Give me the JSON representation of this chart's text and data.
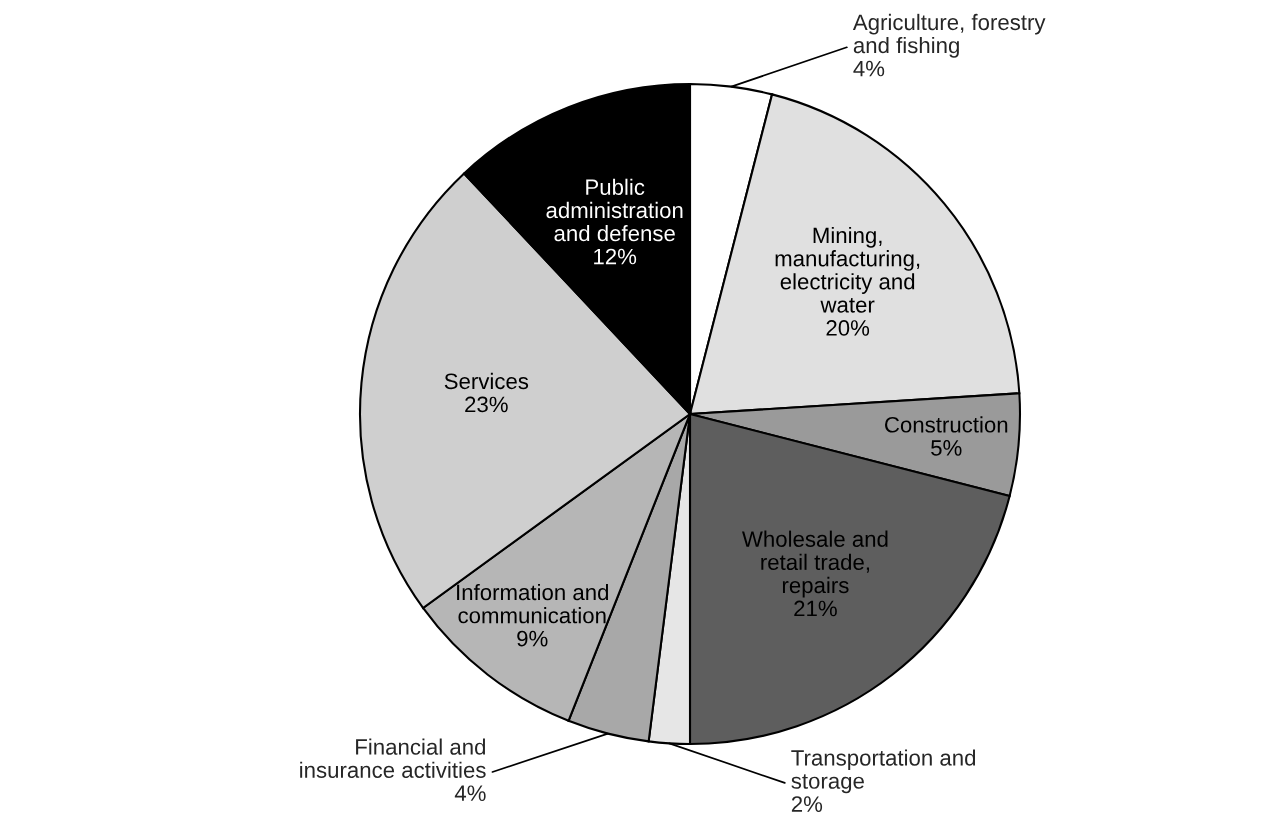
{
  "chart_data": {
    "type": "pie",
    "categories": [
      "Agriculture, forestry\nand fishing",
      "Mining,\nmanufacturing,\nelectricity and\nwater",
      "Construction",
      "Wholesale and\nretail trade,\nrepairs",
      "Transportation and\nstorage",
      "Financial and\ninsurance activities",
      "Information and\ncommunication",
      "Services",
      "Public\nadministration\nand defense"
    ],
    "values": [
      4,
      20,
      5,
      21,
      2,
      4,
      9,
      23,
      12
    ],
    "value_labels": [
      "4%",
      "20%",
      "5%",
      "21%",
      "2%",
      "4%",
      "9%",
      "23%",
      "12%"
    ],
    "colors": [
      "#ffffff",
      "#e0e0e0",
      "#9a9a9a",
      "#5e5e5e",
      "#e6e6e6",
      "#a8a8a8",
      "#b6b6b6",
      "#cfcfcf",
      "#000000"
    ]
  }
}
